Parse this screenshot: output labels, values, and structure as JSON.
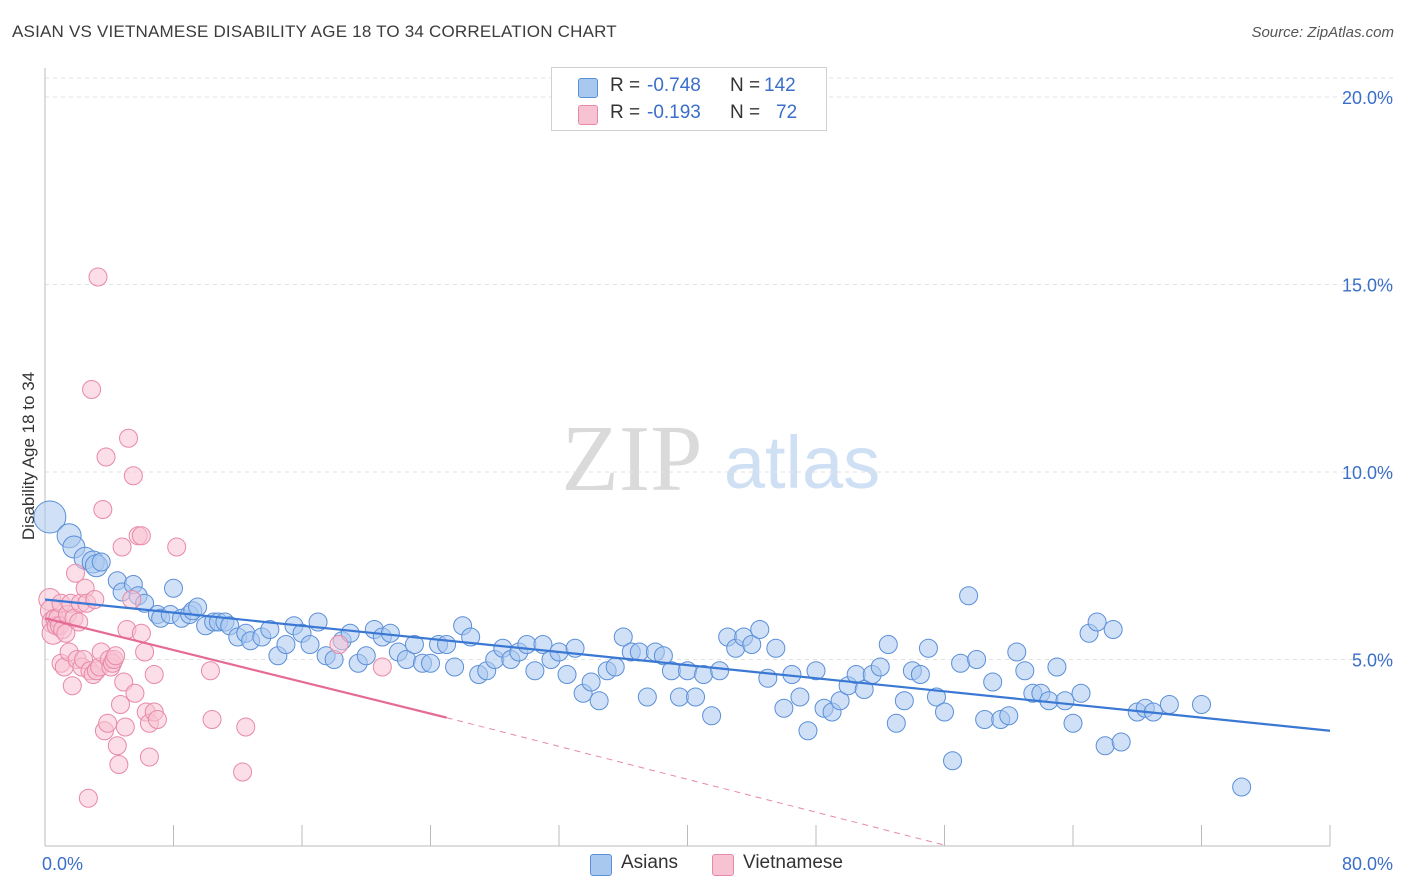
{
  "title": "ASIAN VS VIETNAMESE DISABILITY AGE 18 TO 34 CORRELATION CHART",
  "source": "Source: ZipAtlas.com",
  "watermark": {
    "zip": "ZIP",
    "atlas": "atlas"
  },
  "legend": {
    "r_label": "R =",
    "n_label": "N =",
    "items": [
      {
        "name": "Asians",
        "r": "-0.748",
        "n": "142",
        "fill": "#a9c8f0",
        "stroke": "#5b8fd8"
      },
      {
        "name": "Vietnamese",
        "r": "-0.193",
        "n": "72",
        "fill": "#f7c3d3",
        "stroke": "#e889a8"
      }
    ]
  },
  "chart_data": {
    "type": "scatter",
    "title": "ASIAN VS VIETNAMESE DISABILITY AGE 18 TO 34 CORRELATION CHART",
    "xlabel": "",
    "ylabel": "Disability Age 18 to 34",
    "xlim": [
      0,
      80
    ],
    "ylim": [
      0,
      20.5
    ],
    "x_tick_labels": [
      "0.0%",
      "80.0%"
    ],
    "y_ticks": [
      5,
      10,
      15,
      20
    ],
    "y_tick_labels": [
      "5.0%",
      "10.0%",
      "15.0%",
      "20.0%"
    ],
    "grid": "horizontal dashed",
    "legend_position": "top-center",
    "series": [
      {
        "name": "Asians",
        "color": "#5b8fd8",
        "trend": {
          "x": [
            0,
            80
          ],
          "y": [
            6.6,
            3.1
          ],
          "style": "solid"
        },
        "points": [
          [
            0.3,
            8.8
          ],
          [
            1.5,
            8.3
          ],
          [
            1.8,
            8.0
          ],
          [
            2.5,
            7.7
          ],
          [
            3.0,
            7.6
          ],
          [
            3.2,
            7.5
          ],
          [
            3.5,
            7.6
          ],
          [
            4.5,
            7.1
          ],
          [
            4.8,
            6.8
          ],
          [
            5.5,
            7.0
          ],
          [
            5.8,
            6.7
          ],
          [
            6.2,
            6.5
          ],
          [
            7.0,
            6.2
          ],
          [
            7.2,
            6.1
          ],
          [
            7.8,
            6.2
          ],
          [
            8.0,
            6.9
          ],
          [
            8.5,
            6.1
          ],
          [
            9.0,
            6.2
          ],
          [
            9.2,
            6.3
          ],
          [
            9.5,
            6.4
          ],
          [
            10.0,
            5.9
          ],
          [
            10.5,
            6.0
          ],
          [
            10.8,
            6.0
          ],
          [
            11.2,
            6.0
          ],
          [
            11.5,
            5.9
          ],
          [
            12.0,
            5.6
          ],
          [
            12.5,
            5.7
          ],
          [
            12.8,
            5.5
          ],
          [
            13.5,
            5.6
          ],
          [
            14.0,
            5.8
          ],
          [
            14.5,
            5.1
          ],
          [
            15.0,
            5.4
          ],
          [
            15.5,
            5.9
          ],
          [
            16.0,
            5.7
          ],
          [
            16.5,
            5.4
          ],
          [
            17.0,
            6.0
          ],
          [
            17.5,
            5.1
          ],
          [
            18.0,
            5.0
          ],
          [
            18.5,
            5.5
          ],
          [
            19.0,
            5.7
          ],
          [
            19.5,
            4.9
          ],
          [
            20.0,
            5.1
          ],
          [
            20.5,
            5.8
          ],
          [
            21.0,
            5.6
          ],
          [
            21.5,
            5.7
          ],
          [
            22.0,
            5.2
          ],
          [
            22.5,
            5.0
          ],
          [
            23.0,
            5.4
          ],
          [
            23.5,
            4.9
          ],
          [
            24.0,
            4.9
          ],
          [
            24.5,
            5.4
          ],
          [
            25.0,
            5.4
          ],
          [
            25.5,
            4.8
          ],
          [
            26.0,
            5.9
          ],
          [
            26.5,
            5.6
          ],
          [
            27.0,
            4.6
          ],
          [
            27.5,
            4.7
          ],
          [
            28.0,
            5.0
          ],
          [
            28.5,
            5.3
          ],
          [
            29.0,
            5.0
          ],
          [
            29.5,
            5.2
          ],
          [
            30.0,
            5.4
          ],
          [
            30.5,
            4.7
          ],
          [
            31.0,
            5.4
          ],
          [
            31.5,
            5.0
          ],
          [
            32.0,
            5.2
          ],
          [
            32.5,
            4.6
          ],
          [
            33.0,
            5.3
          ],
          [
            33.5,
            4.1
          ],
          [
            34.0,
            4.4
          ],
          [
            34.5,
            3.9
          ],
          [
            35.0,
            4.7
          ],
          [
            35.5,
            4.8
          ],
          [
            36.0,
            5.6
          ],
          [
            36.5,
            5.2
          ],
          [
            37.0,
            5.2
          ],
          [
            37.5,
            4.0
          ],
          [
            38.0,
            5.2
          ],
          [
            38.5,
            5.1
          ],
          [
            39.0,
            4.7
          ],
          [
            39.5,
            4.0
          ],
          [
            40.0,
            4.7
          ],
          [
            40.5,
            4.0
          ],
          [
            41.0,
            4.6
          ],
          [
            41.5,
            3.5
          ],
          [
            42.0,
            4.7
          ],
          [
            42.5,
            5.6
          ],
          [
            43.0,
            5.3
          ],
          [
            43.5,
            5.6
          ],
          [
            44.0,
            5.4
          ],
          [
            44.5,
            5.8
          ],
          [
            45.0,
            4.5
          ],
          [
            45.5,
            5.3
          ],
          [
            46.0,
            3.7
          ],
          [
            46.5,
            4.6
          ],
          [
            47.0,
            4.0
          ],
          [
            47.5,
            3.1
          ],
          [
            48.0,
            4.7
          ],
          [
            48.5,
            3.7
          ],
          [
            49.0,
            3.6
          ],
          [
            49.5,
            3.9
          ],
          [
            50.0,
            4.3
          ],
          [
            50.5,
            4.6
          ],
          [
            51.0,
            4.2
          ],
          [
            51.5,
            4.6
          ],
          [
            52.0,
            4.8
          ],
          [
            52.5,
            5.4
          ],
          [
            53.0,
            3.3
          ],
          [
            53.5,
            3.9
          ],
          [
            54.0,
            4.7
          ],
          [
            54.5,
            4.6
          ],
          [
            55.0,
            5.3
          ],
          [
            55.5,
            4.0
          ],
          [
            56.0,
            3.6
          ],
          [
            56.5,
            2.3
          ],
          [
            57.0,
            4.9
          ],
          [
            57.5,
            6.7
          ],
          [
            58.0,
            5.0
          ],
          [
            58.5,
            3.4
          ],
          [
            59.0,
            4.4
          ],
          [
            59.5,
            3.4
          ],
          [
            60.0,
            3.5
          ],
          [
            60.5,
            5.2
          ],
          [
            61.0,
            4.7
          ],
          [
            61.5,
            4.1
          ],
          [
            62.0,
            4.1
          ],
          [
            62.5,
            3.9
          ],
          [
            63.0,
            4.8
          ],
          [
            63.5,
            3.9
          ],
          [
            64.0,
            3.3
          ],
          [
            64.5,
            4.1
          ],
          [
            65.0,
            5.7
          ],
          [
            65.5,
            6.0
          ],
          [
            66.0,
            2.7
          ],
          [
            66.5,
            5.8
          ],
          [
            67.0,
            2.8
          ],
          [
            68.0,
            3.6
          ],
          [
            68.5,
            3.7
          ],
          [
            69.0,
            3.6
          ],
          [
            70.0,
            3.8
          ],
          [
            72.0,
            3.8
          ],
          [
            74.5,
            1.6
          ]
        ]
      },
      {
        "name": "Vietnamese",
        "color": "#e889a8",
        "trend": {
          "x": [
            0,
            25,
            56
          ],
          "y": [
            6.1,
            3.45,
            0.05
          ],
          "style": "solid-then-dashed"
        },
        "points": [
          [
            0.3,
            6.6
          ],
          [
            0.4,
            6.3
          ],
          [
            0.5,
            6.0
          ],
          [
            0.5,
            5.7
          ],
          [
            0.6,
            6.1
          ],
          [
            0.7,
            5.9
          ],
          [
            0.8,
            6.1
          ],
          [
            0.9,
            5.9
          ],
          [
            1.0,
            6.5
          ],
          [
            1.0,
            4.9
          ],
          [
            1.1,
            5.8
          ],
          [
            1.2,
            4.8
          ],
          [
            1.3,
            5.7
          ],
          [
            1.4,
            6.2
          ],
          [
            1.5,
            5.2
          ],
          [
            1.6,
            6.5
          ],
          [
            1.7,
            4.3
          ],
          [
            1.8,
            6.1
          ],
          [
            1.9,
            7.3
          ],
          [
            2.0,
            5.0
          ],
          [
            2.1,
            6.0
          ],
          [
            2.2,
            6.5
          ],
          [
            2.3,
            4.8
          ],
          [
            2.4,
            5.0
          ],
          [
            2.5,
            6.9
          ],
          [
            2.6,
            6.5
          ],
          [
            2.7,
            1.3
          ],
          [
            2.8,
            4.7
          ],
          [
            2.9,
            12.2
          ],
          [
            3.0,
            4.6
          ],
          [
            3.1,
            6.6
          ],
          [
            3.2,
            4.7
          ],
          [
            3.3,
            15.2
          ],
          [
            3.4,
            4.8
          ],
          [
            3.5,
            5.2
          ],
          [
            3.6,
            9.0
          ],
          [
            3.7,
            3.1
          ],
          [
            3.8,
            10.4
          ],
          [
            3.9,
            3.3
          ],
          [
            4.0,
            5.0
          ],
          [
            4.1,
            4.8
          ],
          [
            4.2,
            4.9
          ],
          [
            4.3,
            5.0
          ],
          [
            4.4,
            5.1
          ],
          [
            4.5,
            2.7
          ],
          [
            4.6,
            2.2
          ],
          [
            4.7,
            3.8
          ],
          [
            4.8,
            8.0
          ],
          [
            4.9,
            4.4
          ],
          [
            5.0,
            3.2
          ],
          [
            5.1,
            5.8
          ],
          [
            5.2,
            10.9
          ],
          [
            5.4,
            6.6
          ],
          [
            5.5,
            9.9
          ],
          [
            5.6,
            4.1
          ],
          [
            5.8,
            8.3
          ],
          [
            6.0,
            8.3
          ],
          [
            6.0,
            5.7
          ],
          [
            6.2,
            5.2
          ],
          [
            6.3,
            3.6
          ],
          [
            6.5,
            2.4
          ],
          [
            6.5,
            3.3
          ],
          [
            6.8,
            4.6
          ],
          [
            6.8,
            3.6
          ],
          [
            7.0,
            3.4
          ],
          [
            8.2,
            8.0
          ],
          [
            10.3,
            4.7
          ],
          [
            10.4,
            3.4
          ],
          [
            12.3,
            2.0
          ],
          [
            12.5,
            3.2
          ],
          [
            18.3,
            5.4
          ],
          [
            21.0,
            4.8
          ]
        ]
      }
    ]
  }
}
